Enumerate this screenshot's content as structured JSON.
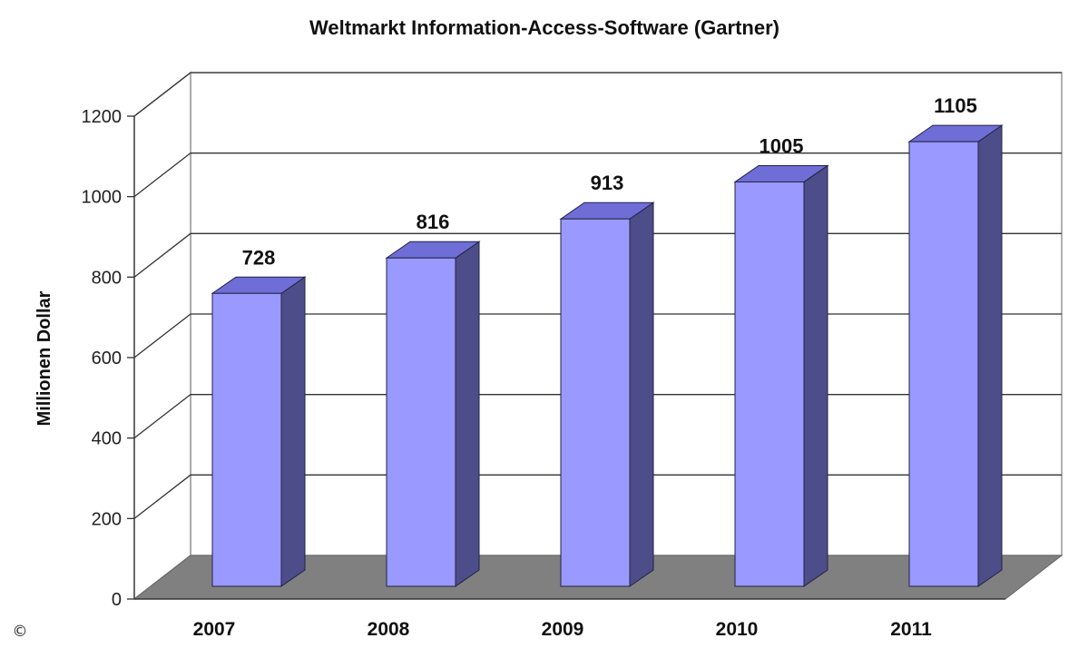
{
  "chart_data": {
    "type": "bar",
    "title": "Weltmarkt Information-Access-Software (Gartner)",
    "xlabel": "",
    "ylabel": "Millionen Dollar",
    "categories": [
      "2007",
      "2008",
      "2009",
      "2010",
      "2011"
    ],
    "values": [
      728,
      816,
      913,
      1005,
      1105
    ],
    "data_labels": [
      "728",
      "816",
      "913",
      "1005",
      "1105"
    ],
    "ylim": [
      0,
      1200
    ],
    "yticks": [
      0,
      200,
      400,
      600,
      800,
      1000,
      1200
    ],
    "ytick_labels": [
      "0",
      "200",
      "400",
      "600",
      "800",
      "1000",
      "1200"
    ],
    "grid": true,
    "style": "3d",
    "colors": {
      "bar_front": "#9999ff",
      "bar_top": "#6e6ed6",
      "bar_side": "#4d4d8a",
      "floor": "#808080",
      "gridline": "#333333"
    }
  },
  "footer": {
    "copyright_symbol": "©"
  }
}
